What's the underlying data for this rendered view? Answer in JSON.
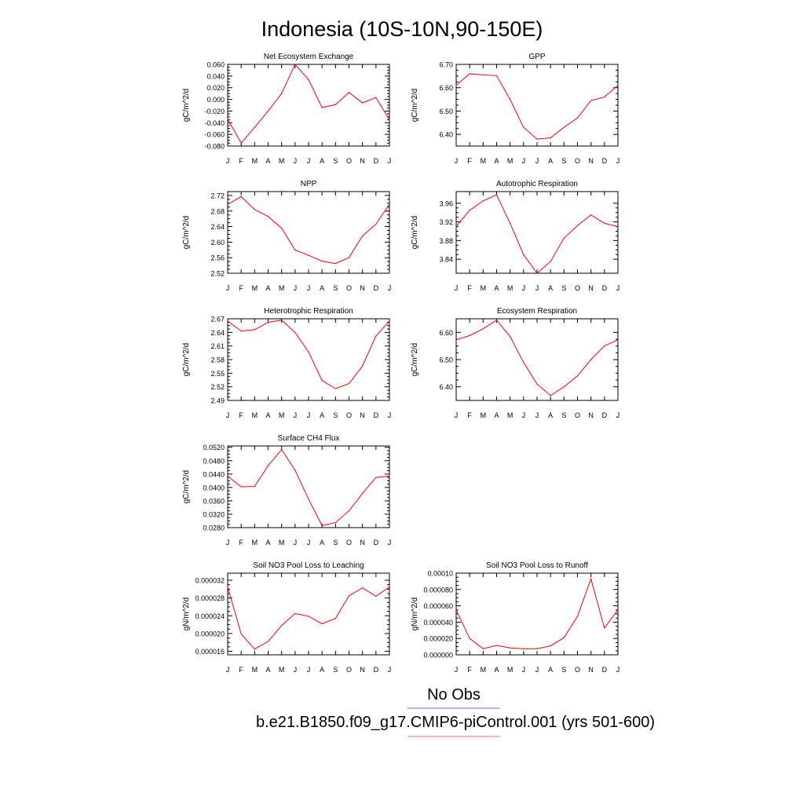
{
  "figure": {
    "title": "Indonesia (10S-10N,90-150E)"
  },
  "legend": {
    "entries": [
      {
        "label": "No Obs",
        "color": "#6b6bff"
      },
      {
        "label": "b.e21.B1850.f09_g17.CMIP6-piControl.001 (yrs 501-600)",
        "color": "#ff6b6b"
      }
    ]
  },
  "colors": {
    "series": "#ff0000",
    "axis": "#000000"
  },
  "chart_data": [
    {
      "type": "line",
      "title": "Net Ecosystem Exchange",
      "ylabel": "gC/m^2/d",
      "categories": [
        "J",
        "F",
        "M",
        "A",
        "M",
        "J",
        "J",
        "A",
        "S",
        "O",
        "N",
        "D",
        "J"
      ],
      "ylim": [
        -0.08,
        0.06
      ],
      "yticks": [
        "-0.080",
        "-0.060",
        "-0.040",
        "-0.020",
        "0.000",
        "0.020",
        "0.040",
        "0.060"
      ],
      "values": [
        -0.034,
        -0.075,
        -0.048,
        -0.02,
        0.01,
        0.06,
        0.034,
        -0.014,
        -0.009,
        0.012,
        -0.006,
        0.003,
        -0.035
      ]
    },
    {
      "type": "line",
      "title": "GPP",
      "ylabel": "gC/m^2/d",
      "categories": [
        "J",
        "F",
        "M",
        "A",
        "M",
        "J",
        "J",
        "A",
        "S",
        "O",
        "N",
        "D",
        "J"
      ],
      "ylim": [
        6.35,
        6.7
      ],
      "yticks": [
        "6.40",
        "6.50",
        "6.60",
        "6.70"
      ],
      "values": [
        6.61,
        6.66,
        6.655,
        6.652,
        6.55,
        6.43,
        6.38,
        6.385,
        6.43,
        6.47,
        6.545,
        6.56,
        6.61
      ]
    },
    {
      "type": "line",
      "title": "NPP",
      "ylabel": "gC/m^2/d",
      "categories": [
        "J",
        "F",
        "M",
        "A",
        "M",
        "J",
        "J",
        "A",
        "S",
        "O",
        "N",
        "D",
        "J"
      ],
      "ylim": [
        2.52,
        2.73
      ],
      "yticks": [
        "2.52",
        "2.56",
        "2.60",
        "2.64",
        "2.68",
        "2.72"
      ],
      "values": [
        2.697,
        2.717,
        2.684,
        2.666,
        2.636,
        2.58,
        2.566,
        2.551,
        2.545,
        2.56,
        2.616,
        2.646,
        2.697
      ]
    },
    {
      "type": "line",
      "title": "Autotrophic Respiration",
      "ylabel": "gC/m^2/d",
      "categories": [
        "J",
        "F",
        "M",
        "A",
        "M",
        "J",
        "J",
        "A",
        "S",
        "O",
        "N",
        "D",
        "J"
      ],
      "ylim": [
        3.81,
        3.985
      ],
      "yticks": [
        "3.84",
        "3.88",
        "3.92",
        "3.96"
      ],
      "values": [
        3.91,
        3.945,
        3.965,
        3.978,
        3.917,
        3.85,
        3.81,
        3.835,
        3.885,
        3.912,
        3.935,
        3.917,
        3.91
      ]
    },
    {
      "type": "line",
      "title": "Heterotrophic Respiration",
      "ylabel": "gC/m^2/d",
      "categories": [
        "J",
        "F",
        "M",
        "A",
        "M",
        "J",
        "J",
        "A",
        "S",
        "O",
        "N",
        "D",
        "J"
      ],
      "ylim": [
        2.49,
        2.67
      ],
      "yticks": [
        "2.49",
        "2.52",
        "2.55",
        "2.58",
        "2.61",
        "2.64",
        "2.67"
      ],
      "values": [
        2.665,
        2.643,
        2.646,
        2.662,
        2.667,
        2.64,
        2.597,
        2.534,
        2.516,
        2.527,
        2.566,
        2.632,
        2.665
      ]
    },
    {
      "type": "line",
      "title": "Ecosystem Respiration",
      "ylabel": "gC/m^2/d",
      "categories": [
        "J",
        "F",
        "M",
        "A",
        "M",
        "J",
        "J",
        "A",
        "S",
        "O",
        "N",
        "D",
        "J"
      ],
      "ylim": [
        6.35,
        6.65
      ],
      "yticks": [
        "6.40",
        "6.50",
        "6.60"
      ],
      "values": [
        6.573,
        6.588,
        6.613,
        6.645,
        6.585,
        6.49,
        6.41,
        6.368,
        6.4,
        6.44,
        6.5,
        6.55,
        6.573
      ]
    },
    {
      "type": "line",
      "title": "Surface CH4 Flux",
      "ylabel": "gC/m^2/d",
      "categories": [
        "J",
        "F",
        "M",
        "A",
        "M",
        "J",
        "J",
        "A",
        "S",
        "O",
        "N",
        "D",
        "J"
      ],
      "ylim": [
        0.028,
        0.0524
      ],
      "yticks": [
        "0.0280",
        "0.0320",
        "0.0360",
        "0.0400",
        "0.0440",
        "0.0480",
        "0.0520"
      ],
      "values": [
        0.0434,
        0.0402,
        0.0403,
        0.0465,
        0.0513,
        0.0452,
        0.0365,
        0.0286,
        0.0295,
        0.033,
        0.0382,
        0.043,
        0.0434
      ]
    },
    {
      "type": "line",
      "title": "Soil NO3 Pool Loss to Leaching",
      "ylabel": "gN/m^2/d",
      "categories": [
        "J",
        "F",
        "M",
        "A",
        "M",
        "J",
        "J",
        "A",
        "S",
        "O",
        "N",
        "D",
        "J"
      ],
      "ylim": [
        1.52e-05,
        3.36e-05
      ],
      "yticks": [
        "0.000016",
        "0.000020",
        "0.000024",
        "0.000028",
        "0.000032"
      ],
      "values": [
        3.05e-05,
        1.99e-05,
        1.65e-05,
        1.82e-05,
        2.18e-05,
        2.45e-05,
        2.39e-05,
        2.22e-05,
        2.34e-05,
        2.85e-05,
        3.03e-05,
        2.84e-05,
        3.05e-05
      ]
    },
    {
      "type": "line",
      "title": "Soil NO3 Pool Loss to Runoff",
      "ylabel": "gN/m^2/d",
      "categories": [
        "J",
        "F",
        "M",
        "A",
        "M",
        "J",
        "J",
        "A",
        "S",
        "O",
        "N",
        "D",
        "J"
      ],
      "ylim": [
        0,
        0.0001
      ],
      "yticks": [
        "0.000000",
        "0.000020",
        "0.000040",
        "0.000060",
        "0.000080",
        "0.00010"
      ],
      "values": [
        5.5e-05,
        2e-05,
        7.5e-06,
        1.15e-05,
        8.5e-06,
        7.5e-06,
        7.5e-06,
        1.1e-05,
        2.1e-05,
        4.7e-05,
        9.3e-05,
        3.3e-05,
        5.5e-05
      ]
    }
  ]
}
